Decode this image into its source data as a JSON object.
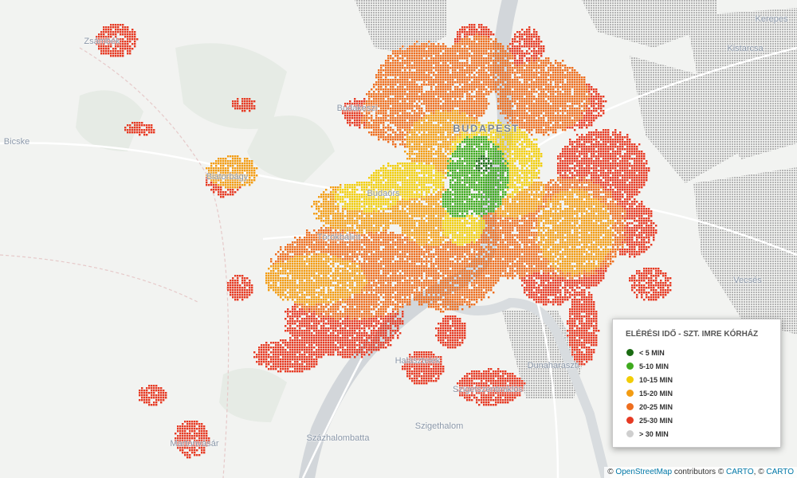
{
  "map": {
    "background_color": "#f2f3f1",
    "water_color": "#d2d6da",
    "urban_color": "#b8b8b8",
    "city_label": "BUDAPEST",
    "places": [
      {
        "id": "zsambek",
        "name": "Zsámbék"
      },
      {
        "id": "budakeszi",
        "name": "Budakeszi"
      },
      {
        "id": "bicske",
        "name": "Bicske"
      },
      {
        "id": "biatorbagy",
        "name": "Biatorbágy"
      },
      {
        "id": "budaors",
        "name": "Budaörs"
      },
      {
        "id": "torokbalint",
        "name": "Törökbálint"
      },
      {
        "id": "kerepes",
        "name": "Kerepes"
      },
      {
        "id": "kistarcsa",
        "name": "Kistarcsa"
      },
      {
        "id": "vecses",
        "name": "Vecsés"
      },
      {
        "id": "halasztelek",
        "name": "Halásztelek"
      },
      {
        "id": "dunaharaszti",
        "name": "Dunaharaszti"
      },
      {
        "id": "szigetszentmiklos",
        "name": "Szigetszentmiklós"
      },
      {
        "id": "szigethalom",
        "name": "Szigethalom"
      },
      {
        "id": "szazhalombatta",
        "name": "Százhalombatta"
      },
      {
        "id": "martonvasar",
        "name": "Martonvásár"
      }
    ]
  },
  "legend": {
    "title": "ELÉRÉSI IDŐ - SZT. IMRE KÓRHÁZ",
    "items": [
      {
        "label": "< 5 MIN",
        "color": "#1a6b12"
      },
      {
        "label": "5-10 MIN",
        "color": "#3faa1e"
      },
      {
        "label": "10-15 MIN",
        "color": "#f2cd06"
      },
      {
        "label": "15-20 MIN",
        "color": "#f39c12"
      },
      {
        "label": "20-25 MIN",
        "color": "#ee6e1f"
      },
      {
        "label": "25-30 MIN",
        "color": "#e63a23"
      },
      {
        "label": "> 30 MIN",
        "color": "#cfcfcf"
      }
    ]
  },
  "attribution": {
    "copyright": "©",
    "osm": "OpenStreetMap",
    "contributors": "contributors",
    "carto1": "CARTO",
    "carto2": "CARTO"
  }
}
